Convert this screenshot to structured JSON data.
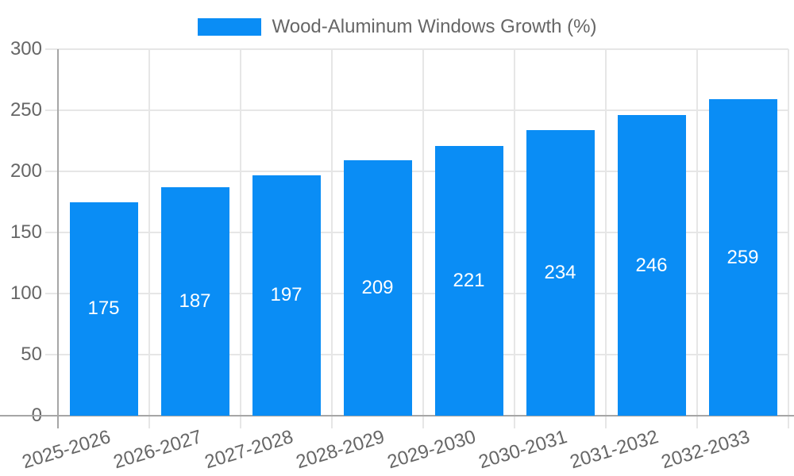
{
  "legend": {
    "label": "Wood-Aluminum Windows Growth (%)"
  },
  "chart_data": {
    "type": "bar",
    "title": "Wood-Aluminum Windows Growth (%)",
    "categories": [
      "2025-2026",
      "2026-2027",
      "2027-2028",
      "2028-2029",
      "2029-2030",
      "2030-2031",
      "2031-2032",
      "2032-2033"
    ],
    "values": [
      175,
      187,
      197,
      209,
      221,
      234,
      246,
      259
    ],
    "series": [
      {
        "name": "Wood-Aluminum Windows Growth (%)",
        "values": [
          175,
          187,
          197,
          209,
          221,
          234,
          246,
          259
        ]
      }
    ],
    "xlabel": "",
    "ylabel": "",
    "ylim": [
      0,
      300
    ],
    "yticks": [
      0,
      50,
      100,
      150,
      200,
      250,
      300
    ],
    "grid": true,
    "legend_position": "top",
    "value_labels": "centered-inside-bars"
  },
  "colors": {
    "bar": "#0a8df5",
    "grid": "#e6e6e6",
    "axis": "#a6a6a6",
    "tick_text": "#666666",
    "legend_text": "#666666",
    "value_label": "#ffffff",
    "background": "#ffffff"
  }
}
